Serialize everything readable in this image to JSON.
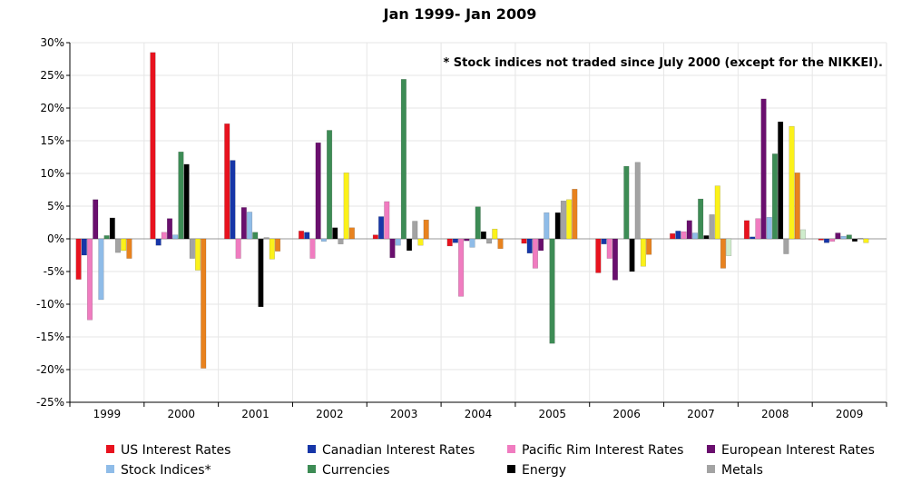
{
  "chart_data": {
    "type": "bar",
    "title": "Jan 1999- Jan 2009",
    "note": "* Stock indices not traded since July 2000 (except for the NIKKEI).",
    "categories": [
      "1999",
      "2000",
      "2001",
      "2002",
      "2003",
      "2004",
      "2005",
      "2006",
      "2007",
      "2008",
      "2009"
    ],
    "ylim": [
      -25,
      30
    ],
    "y_ticks": [
      30,
      25,
      20,
      15,
      10,
      5,
      0,
      -5,
      -10,
      -15,
      -20,
      -25
    ],
    "y_tick_labels": [
      "30%",
      "25%",
      "20%",
      "15%",
      "10%",
      "5%",
      "0%",
      "-5%",
      "-10%",
      "-15%",
      "-20%",
      "-25%"
    ],
    "grid": true,
    "legend_position": "bottom",
    "series": [
      {
        "name": "US Interest Rates",
        "color": "#e8121e",
        "values": [
          -6.2,
          28.5,
          17.6,
          1.2,
          0.6,
          -1.1,
          -0.7,
          -5.2,
          0.8,
          2.8,
          -0.2
        ]
      },
      {
        "name": "Canadian Interest Rates",
        "color": "#1636a8",
        "values": [
          -2.5,
          -1.0,
          12.0,
          1.0,
          3.4,
          -0.6,
          -2.2,
          -0.8,
          1.2,
          0.3,
          -0.6
        ]
      },
      {
        "name": "Pacific Rim Interest Rates",
        "color": "#f07cc0",
        "values": [
          -12.4,
          1.0,
          -3.0,
          -3.0,
          5.7,
          -8.8,
          -4.5,
          -3.0,
          1.1,
          3.1,
          -0.4
        ]
      },
      {
        "name": "European Interest Rates",
        "color": "#6a0f6e",
        "values": [
          6.0,
          3.1,
          4.8,
          14.7,
          -2.9,
          -0.3,
          -1.8,
          -6.3,
          2.8,
          21.4,
          0.9
        ]
      },
      {
        "name": "Stock Indices*",
        "color": "#8fbce8",
        "values": [
          -9.3,
          0.6,
          4.1,
          -0.4,
          -1.0,
          -1.3,
          4.0,
          0,
          0.9,
          3.3,
          0.4
        ]
      },
      {
        "name": "Currencies",
        "color": "#3d8c55",
        "values": [
          0.5,
          13.3,
          1.0,
          16.6,
          24.4,
          4.9,
          -16.0,
          11.1,
          6.1,
          13.0,
          0.6
        ]
      },
      {
        "name": "Energy",
        "color": "#000000",
        "values": [
          3.2,
          11.4,
          -10.4,
          1.7,
          -1.8,
          1.1,
          4.0,
          -5.0,
          0.5,
          17.9,
          -0.4
        ]
      },
      {
        "name": "Metals",
        "color": "#a3a3a3",
        "values": [
          -2.1,
          -3.0,
          0.2,
          -0.8,
          2.7,
          -0.7,
          5.8,
          11.7,
          3.7,
          -2.3,
          0.1
        ]
      },
      {
        "name": "",
        "color": "#fbf11a",
        "values": [
          -1.8,
          -4.8,
          -3.1,
          10.1,
          -1.0,
          1.5,
          6.0,
          -4.2,
          8.1,
          17.2,
          -0.6
        ]
      },
      {
        "name": "",
        "color": "#e8821e",
        "values": [
          -3.0,
          -19.8,
          -1.9,
          1.7,
          2.9,
          -1.5,
          7.6,
          -2.4,
          -4.5,
          10.1,
          0
        ]
      },
      {
        "name": "",
        "color": "#cfeccc",
        "values": [
          0,
          0,
          0,
          0,
          0,
          0,
          0,
          0,
          -2.6,
          1.4,
          0
        ]
      }
    ],
    "legend": [
      {
        "label": "US Interest Rates",
        "color": "#e8121e"
      },
      {
        "label": "Canadian Interest Rates",
        "color": "#1636a8"
      },
      {
        "label": "Pacific Rim Interest Rates",
        "color": "#f07cc0"
      },
      {
        "label": "European Interest Rates",
        "color": "#6a0f6e"
      },
      {
        "label": "Stock Indices*",
        "color": "#8fbce8"
      },
      {
        "label": "Currencies",
        "color": "#3d8c55"
      },
      {
        "label": "Energy",
        "color": "#000000"
      },
      {
        "label": "Metals",
        "color": "#a3a3a3"
      }
    ]
  }
}
